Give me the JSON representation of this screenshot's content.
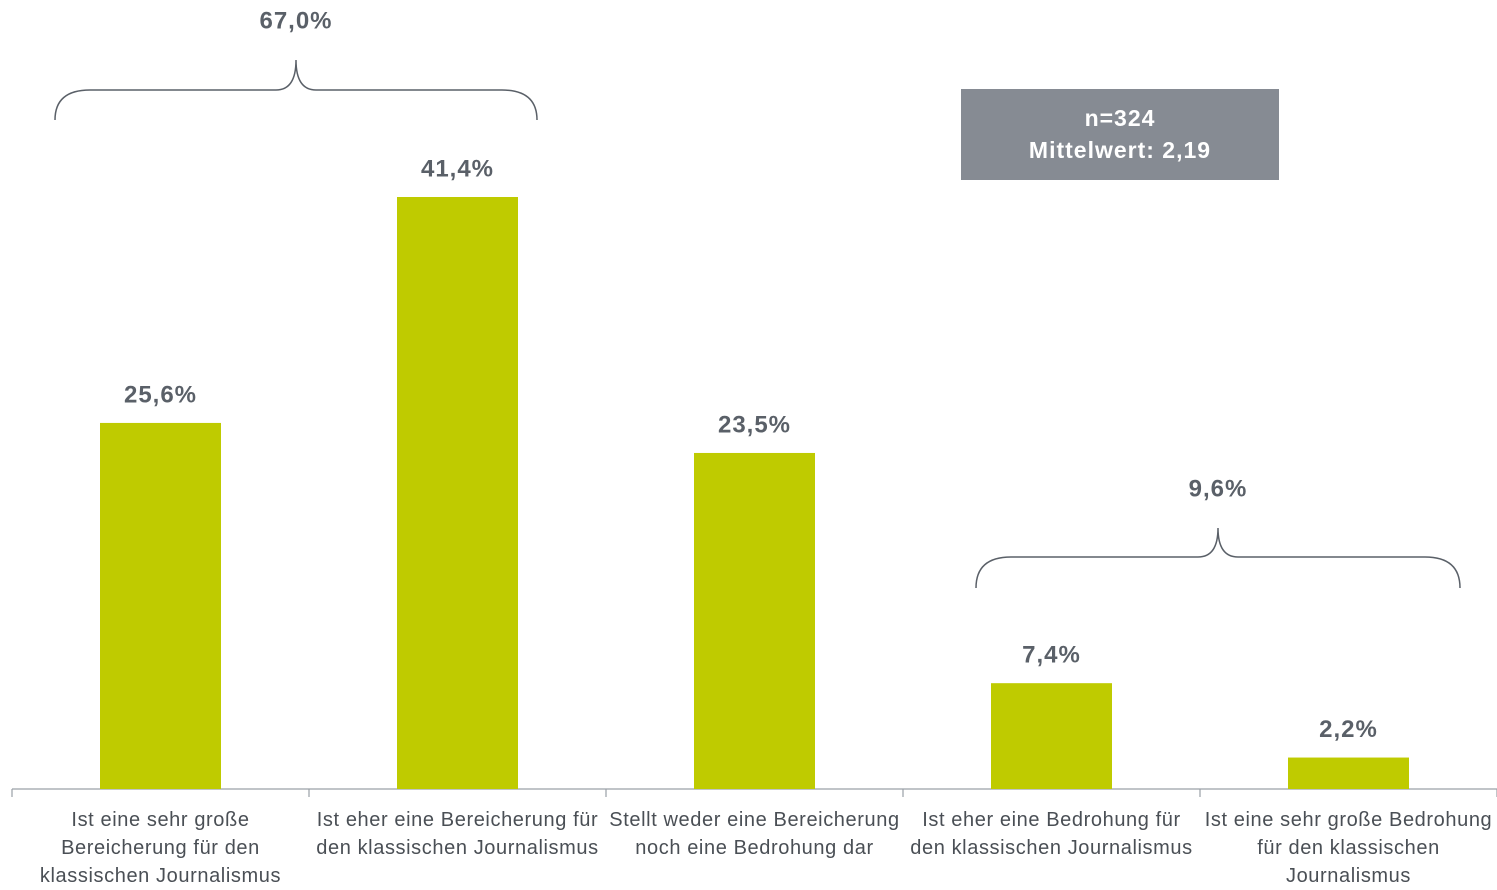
{
  "chart_data": {
    "type": "bar",
    "categories": [
      "Ist eine sehr große Bereicherung für den klassischen Journalismus",
      "Ist eher eine Bereicherung für den klassischen Journalismus",
      "Stellt weder eine Bereicherung noch eine Bedrohung dar",
      "Ist eher eine Bedrohung für den klassischen Journalismus",
      "Ist eine sehr große Bedrohung für den klassischen Journalismus"
    ],
    "values": [
      25.6,
      41.4,
      23.5,
      7.4,
      2.2
    ],
    "value_labels": [
      "25,6%",
      "41,4%",
      "23,5%",
      "7,4%",
      "2,2%"
    ],
    "color": "#bfcb00",
    "annotations": [
      {
        "text": "67,0%"
      },
      {
        "text": "9,6%"
      }
    ],
    "info_box": [
      "n=324",
      "Mittelwert: 2,19"
    ]
  }
}
